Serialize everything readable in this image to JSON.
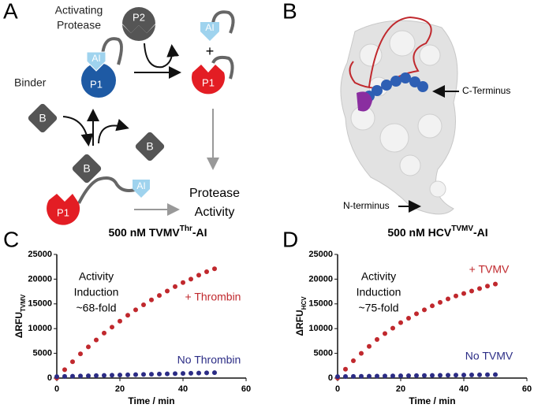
{
  "panels": [
    "A",
    "B",
    "C",
    "D"
  ],
  "diagram": {
    "activating": "Activating",
    "protease": "Protease",
    "p2": "P2",
    "ai": "AI",
    "p1": "P1",
    "plus": "+",
    "binder": "Binder",
    "b": "B",
    "activity_1": "Protease",
    "activity_2": "Activity"
  },
  "structure": {
    "c_terminus": "C-Terminus",
    "n_terminus": "N-terminus"
  },
  "chart_data": [
    {
      "type": "scatter",
      "title": "500 nM TVMV",
      "title_sup": "Thr",
      "title_end": "-AI",
      "ylabel": "ΔRFU",
      "ylabel_sub": "TVMV",
      "xlabel": "Time / min",
      "annotation": [
        "Activity",
        "Induction",
        "~68-fold"
      ],
      "xlim": [
        0,
        60
      ],
      "xticks": [
        0,
        20,
        40,
        60
      ],
      "ylim": [
        0,
        25000
      ],
      "yticks": [
        0,
        5000,
        10000,
        15000,
        20000,
        25000
      ],
      "x": [
        0,
        2.5,
        5,
        7.5,
        10,
        12.5,
        15,
        17.5,
        20,
        22.5,
        25,
        27.5,
        30,
        32.5,
        35,
        37.5,
        40,
        42.5,
        45,
        47.5,
        50
      ],
      "series": [
        {
          "name": "+ Thrombin",
          "color": "#c0282d",
          "values": [
            0,
            1700,
            3300,
            4900,
            6300,
            7700,
            9100,
            10300,
            11500,
            12700,
            13800,
            14800,
            15800,
            16700,
            17600,
            18500,
            19300,
            20000,
            20800,
            21500,
            22100
          ]
        },
        {
          "name": "No Thrombin",
          "color": "#2b2c85",
          "values": [
            300,
            340,
            380,
            420,
            460,
            500,
            540,
            580,
            620,
            660,
            700,
            740,
            780,
            820,
            860,
            900,
            940,
            980,
            1020,
            1060,
            1100
          ]
        }
      ]
    },
    {
      "type": "scatter",
      "title": "500 nM HCV",
      "title_sup": "TVMV",
      "title_end": "-AI",
      "ylabel": "ΔRFU",
      "ylabel_sub": "HCV",
      "xlabel": "Time / min",
      "annotation": [
        "Activity",
        "Induction",
        "~75-fold"
      ],
      "xlim": [
        0,
        60
      ],
      "xticks": [
        0,
        20,
        40,
        60
      ],
      "ylim": [
        0,
        25000
      ],
      "yticks": [
        0,
        5000,
        10000,
        15000,
        20000,
        25000
      ],
      "x": [
        0,
        2.5,
        5,
        7.5,
        10,
        12.5,
        15,
        17.5,
        20,
        22.5,
        25,
        27.5,
        30,
        32.5,
        35,
        37.5,
        40,
        42.5,
        45,
        47.5,
        50
      ],
      "series": [
        {
          "name": "+ TVMV",
          "color": "#c0282d",
          "values": [
            0,
            1800,
            3500,
            5000,
            6400,
            7800,
            9000,
            10100,
            11200,
            12100,
            13000,
            13800,
            14600,
            15300,
            16000,
            16600,
            17100,
            17600,
            18100,
            18600,
            19000
          ]
        },
        {
          "name": "No TVMV",
          "color": "#2b2c85",
          "values": [
            300,
            320,
            340,
            360,
            380,
            400,
            420,
            440,
            460,
            480,
            500,
            520,
            540,
            560,
            580,
            600,
            620,
            640,
            660,
            680,
            700
          ]
        }
      ]
    }
  ]
}
